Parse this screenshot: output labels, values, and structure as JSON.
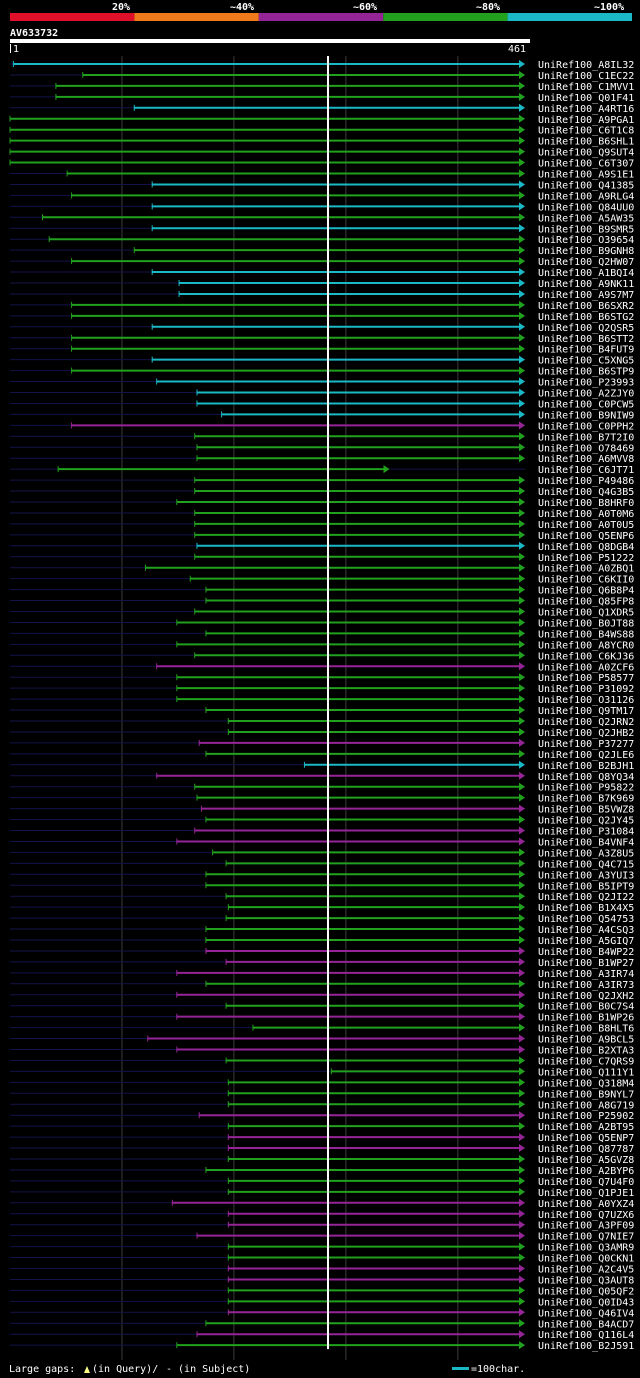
{
  "chart_data": {
    "type": "alignment-overview",
    "query_id": "AV633732",
    "query_start": "1",
    "query_length": "461",
    "legend_scale": {
      "labels": [
        "20%",
        "~40%",
        "~60%",
        "~80%",
        "~100%"
      ],
      "colors": [
        "#e0102a",
        "#ee7a1c",
        "#952597",
        "#21a11d",
        "#1bb8c6"
      ]
    },
    "footer": {
      "gaps_label": "Large gaps:",
      "query_gap_label": "(in Query)/",
      "subject_gap_label": "- (in Subject)",
      "scale_label": "=100char."
    },
    "hits": [
      {
        "id": "UniRef100_A8IL32",
        "a": 4,
        "b": 461,
        "color": "#1bb8c6",
        "arrow": true
      },
      {
        "id": "UniRef100_C1EC22",
        "a": 66,
        "b": 461,
        "color": "#21a11d",
        "arrow": true
      },
      {
        "id": "UniRef100_C1MVV1",
        "a": 42,
        "b": 461,
        "color": "#21a11d",
        "arrow": true
      },
      {
        "id": "UniRef100_Q01F41",
        "a": 42,
        "b": 461,
        "color": "#21a11d",
        "arrow": true
      },
      {
        "id": "UniRef100_A4RT16",
        "a": 112,
        "b": 461,
        "color": "#1bb8c6",
        "arrow": true
      },
      {
        "id": "UniRef100_A9PGA1",
        "a": 1,
        "b": 461,
        "color": "#21a11d",
        "arrow": true
      },
      {
        "id": "UniRef100_C6T1C8",
        "a": 1,
        "b": 461,
        "color": "#21a11d",
        "arrow": true
      },
      {
        "id": "UniRef100_B6SHL1",
        "a": 1,
        "b": 461,
        "color": "#21a11d",
        "arrow": true
      },
      {
        "id": "UniRef100_Q9SUT4",
        "a": 1,
        "b": 461,
        "color": "#21a11d",
        "arrow": true
      },
      {
        "id": "UniRef100_C6T307",
        "a": 1,
        "b": 461,
        "color": "#21a11d",
        "arrow": true
      },
      {
        "id": "UniRef100_A9S1E1",
        "a": 52,
        "b": 461,
        "color": "#21a11d",
        "arrow": true
      },
      {
        "id": "UniRef100_Q41385",
        "a": 128,
        "b": 461,
        "color": "#1bb8c6",
        "arrow": true
      },
      {
        "id": "UniRef100_A9RLG4",
        "a": 56,
        "b": 461,
        "color": "#21a11d",
        "arrow": true
      },
      {
        "id": "UniRef100_Q84UU0",
        "a": 128,
        "b": 461,
        "color": "#1bb8c6",
        "arrow": true
      },
      {
        "id": "UniRef100_A5AW35",
        "a": 30,
        "b": 461,
        "color": "#21a11d",
        "arrow": true
      },
      {
        "id": "UniRef100_B9SMR5",
        "a": 128,
        "b": 461,
        "color": "#1bb8c6",
        "arrow": true
      },
      {
        "id": "UniRef100_O39654",
        "a": 36,
        "b": 461,
        "color": "#21a11d",
        "arrow": true
      },
      {
        "id": "UniRef100_B9GNH8",
        "a": 112,
        "b": 461,
        "color": "#21a11d",
        "arrow": true
      },
      {
        "id": "UniRef100_Q2HW07",
        "a": 56,
        "b": 461,
        "color": "#21a11d",
        "arrow": true
      },
      {
        "id": "UniRef100_A1BQI4",
        "a": 128,
        "b": 461,
        "color": "#1bb8c6",
        "arrow": true
      },
      {
        "id": "UniRef100_A9NK11",
        "a": 152,
        "b": 461,
        "color": "#1bb8c6",
        "arrow": true
      },
      {
        "id": "UniRef100_A9S7M7",
        "a": 152,
        "b": 461,
        "color": "#1bb8c6",
        "arrow": true
      },
      {
        "id": "UniRef100_B6SXR2",
        "a": 56,
        "b": 461,
        "color": "#21a11d",
        "arrow": true
      },
      {
        "id": "UniRef100_B6STG2",
        "a": 56,
        "b": 461,
        "color": "#21a11d",
        "arrow": true
      },
      {
        "id": "UniRef100_Q2QSR5",
        "a": 128,
        "b": 461,
        "color": "#1bb8c6",
        "arrow": true
      },
      {
        "id": "UniRef100_B6STT2",
        "a": 56,
        "b": 461,
        "color": "#21a11d",
        "arrow": true
      },
      {
        "id": "UniRef100_B4FUT9",
        "a": 56,
        "b": 461,
        "color": "#21a11d",
        "arrow": true
      },
      {
        "id": "UniRef100_C5XNG5",
        "a": 128,
        "b": 461,
        "color": "#1bb8c6",
        "arrow": true
      },
      {
        "id": "UniRef100_B6STP9",
        "a": 56,
        "b": 461,
        "color": "#21a11d",
        "arrow": true
      },
      {
        "id": "UniRef100_P23993",
        "a": 132,
        "b": 461,
        "color": "#1bb8c6",
        "arrow": true
      },
      {
        "id": "UniRef100_A2ZJY0",
        "a": 168,
        "b": 461,
        "color": "#1bb8c6",
        "arrow": true
      },
      {
        "id": "UniRef100_C0PCW5",
        "a": 168,
        "b": 461,
        "color": "#1bb8c6",
        "arrow": true
      },
      {
        "id": "UniRef100_B9NIW9",
        "a": 190,
        "b": 461,
        "color": "#1bb8c6",
        "arrow": true
      },
      {
        "id": "UniRef100_C0PPH2",
        "a": 56,
        "b": 461,
        "color": "#952597",
        "arrow": true
      },
      {
        "id": "UniRef100_B7T2I0",
        "a": 166,
        "b": 461,
        "color": "#21a11d",
        "arrow": true
      },
      {
        "id": "UniRef100_O78469",
        "a": 168,
        "b": 461,
        "color": "#21a11d",
        "arrow": true
      },
      {
        "id": "UniRef100_A6MVV8",
        "a": 168,
        "b": 461,
        "color": "#21a11d",
        "arrow": true
      },
      {
        "id": "UniRef100_C6JT71",
        "a": 44,
        "b": 340,
        "color": "#21a11d",
        "arrow": true
      },
      {
        "id": "UniRef100_P49486",
        "a": 166,
        "b": 461,
        "color": "#21a11d",
        "arrow": true
      },
      {
        "id": "UniRef100_Q4G3B5",
        "a": 166,
        "b": 461,
        "color": "#21a11d",
        "arrow": true
      },
      {
        "id": "UniRef100_B8HRF0",
        "a": 150,
        "b": 461,
        "color": "#21a11d",
        "arrow": true
      },
      {
        "id": "UniRef100_A0T0M6",
        "a": 166,
        "b": 461,
        "color": "#21a11d",
        "arrow": true
      },
      {
        "id": "UniRef100_A0T0U5",
        "a": 166,
        "b": 461,
        "color": "#21a11d",
        "arrow": true
      },
      {
        "id": "UniRef100_Q5ENP6",
        "a": 166,
        "b": 461,
        "color": "#21a11d",
        "arrow": true
      },
      {
        "id": "UniRef100_Q8DGB4",
        "a": 168,
        "b": 461,
        "color": "#1bb8c6",
        "arrow": true
      },
      {
        "id": "UniRef100_P51222",
        "a": 166,
        "b": 461,
        "color": "#21a11d",
        "arrow": true
      },
      {
        "id": "UniRef100_A0ZBQ1",
        "a": 122,
        "b": 461,
        "color": "#21a11d",
        "arrow": true
      },
      {
        "id": "UniRef100_C6KII0",
        "a": 162,
        "b": 461,
        "color": "#21a11d",
        "arrow": true
      },
      {
        "id": "UniRef100_Q6B8P4",
        "a": 176,
        "b": 461,
        "color": "#21a11d",
        "arrow": true
      },
      {
        "id": "UniRef100_Q85FP8",
        "a": 176,
        "b": 461,
        "color": "#21a11d",
        "arrow": true
      },
      {
        "id": "UniRef100_Q1XDR5",
        "a": 166,
        "b": 461,
        "color": "#21a11d",
        "arrow": true
      },
      {
        "id": "UniRef100_B0JT88",
        "a": 150,
        "b": 461,
        "color": "#21a11d",
        "arrow": true
      },
      {
        "id": "UniRef100_B4WS88",
        "a": 176,
        "b": 461,
        "color": "#21a11d",
        "arrow": true
      },
      {
        "id": "UniRef100_A8YCR0",
        "a": 150,
        "b": 461,
        "color": "#21a11d",
        "arrow": true
      },
      {
        "id": "UniRef100_C6KJ36",
        "a": 166,
        "b": 461,
        "color": "#21a11d",
        "arrow": true
      },
      {
        "id": "UniRef100_A0ZCF6",
        "a": 132,
        "b": 461,
        "color": "#952597",
        "arrow": true
      },
      {
        "id": "UniRef100_P58577",
        "a": 150,
        "b": 461,
        "color": "#21a11d",
        "arrow": true
      },
      {
        "id": "UniRef100_P31092",
        "a": 150,
        "b": 461,
        "color": "#21a11d",
        "arrow": true
      },
      {
        "id": "UniRef100_O31126",
        "a": 150,
        "b": 461,
        "color": "#21a11d",
        "arrow": true
      },
      {
        "id": "UniRef100_Q9TM17",
        "a": 176,
        "b": 461,
        "color": "#21a11d",
        "arrow": true
      },
      {
        "id": "UniRef100_Q2JRN2",
        "a": 196,
        "b": 461,
        "color": "#21a11d",
        "arrow": true
      },
      {
        "id": "UniRef100_Q2JHB2",
        "a": 196,
        "b": 461,
        "color": "#21a11d",
        "arrow": true
      },
      {
        "id": "UniRef100_P37277",
        "a": 170,
        "b": 461,
        "color": "#952597",
        "arrow": true
      },
      {
        "id": "UniRef100_Q2JLE6",
        "a": 176,
        "b": 461,
        "color": "#21a11d",
        "arrow": true
      },
      {
        "id": "UniRef100_B2BJH1",
        "a": 264,
        "b": 461,
        "color": "#1bb8c6",
        "arrow": true
      },
      {
        "id": "UniRef100_Q8YQ34",
        "a": 132,
        "b": 461,
        "color": "#952597",
        "arrow": true
      },
      {
        "id": "UniRef100_P95822",
        "a": 166,
        "b": 461,
        "color": "#21a11d",
        "arrow": true
      },
      {
        "id": "UniRef100_B7K969",
        "a": 168,
        "b": 461,
        "color": "#21a11d",
        "arrow": true
      },
      {
        "id": "UniRef100_B5VWZ8",
        "a": 172,
        "b": 461,
        "color": "#952597",
        "arrow": true
      },
      {
        "id": "UniRef100_Q2JY45",
        "a": 176,
        "b": 461,
        "color": "#21a11d",
        "arrow": true
      },
      {
        "id": "UniRef100_P31084",
        "a": 166,
        "b": 461,
        "color": "#952597",
        "arrow": true
      },
      {
        "id": "UniRef100_B4VNF4",
        "a": 150,
        "b": 461,
        "color": "#952597",
        "arrow": true
      },
      {
        "id": "UniRef100_A3Z8U5",
        "a": 182,
        "b": 461,
        "color": "#21a11d",
        "arrow": true
      },
      {
        "id": "UniRef100_Q4C715",
        "a": 194,
        "b": 461,
        "color": "#21a11d",
        "arrow": true
      },
      {
        "id": "UniRef100_A3YUI3",
        "a": 176,
        "b": 461,
        "color": "#21a11d",
        "arrow": true
      },
      {
        "id": "UniRef100_B5IPT9",
        "a": 176,
        "b": 461,
        "color": "#21a11d",
        "arrow": true
      },
      {
        "id": "UniRef100_Q2JI22",
        "a": 194,
        "b": 461,
        "color": "#21a11d",
        "arrow": true
      },
      {
        "id": "UniRef100_B1X4X5",
        "a": 196,
        "b": 461,
        "color": "#21a11d",
        "arrow": true
      },
      {
        "id": "UniRef100_Q54753",
        "a": 194,
        "b": 461,
        "color": "#21a11d",
        "arrow": true
      },
      {
        "id": "UniRef100_A4CSQ3",
        "a": 176,
        "b": 461,
        "color": "#21a11d",
        "arrow": true
      },
      {
        "id": "UniRef100_A5GIQ7",
        "a": 176,
        "b": 461,
        "color": "#21a11d",
        "arrow": true
      },
      {
        "id": "UniRef100_B4WP22",
        "a": 176,
        "b": 461,
        "color": "#952597",
        "arrow": true
      },
      {
        "id": "UniRef100_B1WP27",
        "a": 194,
        "b": 461,
        "color": "#952597",
        "arrow": true
      },
      {
        "id": "UniRef100_A3IR74",
        "a": 150,
        "b": 461,
        "color": "#952597",
        "arrow": true
      },
      {
        "id": "UniRef100_A3IR73",
        "a": 176,
        "b": 461,
        "color": "#21a11d",
        "arrow": true
      },
      {
        "id": "UniRef100_Q2JXH2",
        "a": 150,
        "b": 461,
        "color": "#952597",
        "arrow": true
      },
      {
        "id": "UniRef100_B0C7S4",
        "a": 194,
        "b": 461,
        "color": "#21a11d",
        "arrow": true
      },
      {
        "id": "UniRef100_B1WP26",
        "a": 150,
        "b": 461,
        "color": "#952597",
        "arrow": true
      },
      {
        "id": "UniRef100_B8HLT6",
        "a": 218,
        "b": 461,
        "color": "#21a11d",
        "arrow": true
      },
      {
        "id": "UniRef100_A9BCL5",
        "a": 124,
        "b": 461,
        "color": "#952597",
        "arrow": true
      },
      {
        "id": "UniRef100_B2XTA3",
        "a": 150,
        "b": 461,
        "color": "#952597",
        "arrow": true
      },
      {
        "id": "UniRef100_C7QRS9",
        "a": 194,
        "b": 461,
        "color": "#21a11d",
        "arrow": true
      },
      {
        "id": "UniRef100_Q111Y1",
        "a": 288,
        "b": 461,
        "color": "#21a11d",
        "arrow": true
      },
      {
        "id": "UniRef100_Q318M4",
        "a": 196,
        "b": 461,
        "color": "#21a11d",
        "arrow": true
      },
      {
        "id": "UniRef100_B9NYL7",
        "a": 196,
        "b": 461,
        "color": "#21a11d",
        "arrow": true
      },
      {
        "id": "UniRef100_A8G719",
        "a": 196,
        "b": 461,
        "color": "#21a11d",
        "arrow": true
      },
      {
        "id": "UniRef100_P25902",
        "a": 170,
        "b": 461,
        "color": "#952597",
        "arrow": true
      },
      {
        "id": "UniRef100_A2BT95",
        "a": 196,
        "b": 461,
        "color": "#21a11d",
        "arrow": true
      },
      {
        "id": "UniRef100_Q5ENP7",
        "a": 196,
        "b": 461,
        "color": "#952597",
        "arrow": true
      },
      {
        "id": "UniRef100_Q87787",
        "a": 196,
        "b": 461,
        "color": "#952597",
        "arrow": true
      },
      {
        "id": "UniRef100_A5GVZ8",
        "a": 196,
        "b": 461,
        "color": "#21a11d",
        "arrow": true
      },
      {
        "id": "UniRef100_A2BYP6",
        "a": 176,
        "b": 461,
        "color": "#21a11d",
        "arrow": true
      },
      {
        "id": "UniRef100_Q7U4F0",
        "a": 196,
        "b": 461,
        "color": "#21a11d",
        "arrow": true
      },
      {
        "id": "UniRef100_Q1PJE1",
        "a": 196,
        "b": 461,
        "color": "#21a11d",
        "arrow": true
      },
      {
        "id": "UniRef100_A0YXZ4",
        "a": 146,
        "b": 461,
        "color": "#952597",
        "arrow": true
      },
      {
        "id": "UniRef100_Q7UZX6",
        "a": 196,
        "b": 461,
        "color": "#952597",
        "arrow": true
      },
      {
        "id": "UniRef100_A3PF09",
        "a": 196,
        "b": 461,
        "color": "#952597",
        "arrow": true
      },
      {
        "id": "UniRef100_Q7NIE7",
        "a": 168,
        "b": 461,
        "color": "#952597",
        "arrow": true
      },
      {
        "id": "UniRef100_Q3AMR9",
        "a": 196,
        "b": 461,
        "color": "#21a11d",
        "arrow": true
      },
      {
        "id": "UniRef100_Q0CKN1",
        "a": 196,
        "b": 461,
        "color": "#21a11d",
        "arrow": true
      },
      {
        "id": "UniRef100_A2C4V5",
        "a": 196,
        "b": 461,
        "color": "#952597",
        "arrow": true
      },
      {
        "id": "UniRef100_Q3AUT8",
        "a": 196,
        "b": 461,
        "color": "#952597",
        "arrow": true
      },
      {
        "id": "UniRef100_Q05QF2",
        "a": 196,
        "b": 461,
        "color": "#21a11d",
        "arrow": true
      },
      {
        "id": "UniRef100_Q0ID43",
        "a": 196,
        "b": 461,
        "color": "#21a11d",
        "arrow": true
      },
      {
        "id": "UniRef100_Q46IV4",
        "a": 196,
        "b": 461,
        "color": "#952597",
        "arrow": true
      },
      {
        "id": "UniRef100_B4ACD7",
        "a": 176,
        "b": 461,
        "color": "#21a11d",
        "arrow": true
      },
      {
        "id": "UniRef100_Q116L4",
        "a": 168,
        "b": 461,
        "color": "#952597",
        "arrow": true
      },
      {
        "id": "UniRef100_B2J591",
        "a": 150,
        "b": 461,
        "color": "#21a11d",
        "arrow": true
      }
    ]
  }
}
